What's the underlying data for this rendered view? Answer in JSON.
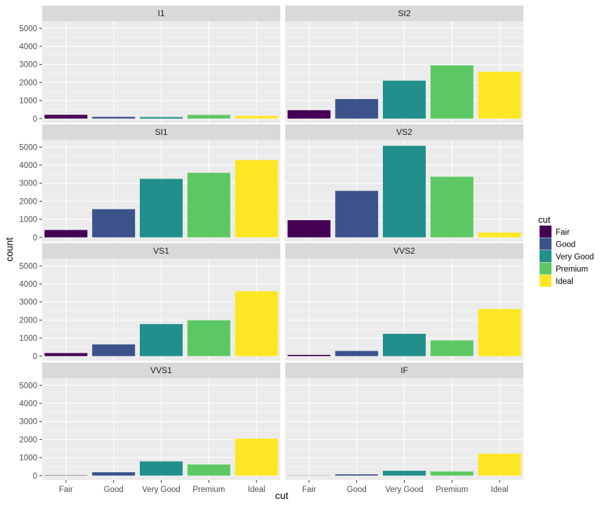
{
  "chart_data": {
    "type": "bar",
    "facet_layout": "2 columns x 4 rows, shared axes",
    "categories": [
      "Fair",
      "Good",
      "Very Good",
      "Premium",
      "Ideal"
    ],
    "colors": [
      "#440154",
      "#3b528b",
      "#21908c",
      "#5dc863",
      "#fde725"
    ],
    "xlabel": "cut",
    "ylabel": "count",
    "ylim": [
      0,
      5400
    ],
    "yticks": [
      0,
      1000,
      2000,
      3000,
      4000,
      5000
    ],
    "grid": true,
    "legend": {
      "title": "cut",
      "position": "right",
      "items": [
        "Fair",
        "Good",
        "Very Good",
        "Premium",
        "Ideal"
      ]
    },
    "facets": [
      {
        "name": "I1",
        "values": [
          210,
          96,
          84,
          205,
          146
        ]
      },
      {
        "name": "SI2",
        "values": [
          466,
          1081,
          2100,
          2949,
          2598
        ]
      },
      {
        "name": "SI1",
        "values": [
          408,
          1560,
          3240,
          3575,
          4282
        ]
      },
      {
        "name": "VS2",
        "values": [
          954,
          2575,
          5071,
          3357,
          261
        ]
      },
      {
        "name": "VS1",
        "values": [
          170,
          648,
          1775,
          1989,
          3589
        ]
      },
      {
        "name": "VVS2",
        "values": [
          69,
          286,
          1235,
          870,
          2606
        ]
      },
      {
        "name": "VVS1",
        "values": [
          17,
          186,
          789,
          616,
          2047
        ]
      },
      {
        "name": "IF",
        "values": [
          9,
          71,
          268,
          230,
          1212
        ]
      }
    ]
  }
}
